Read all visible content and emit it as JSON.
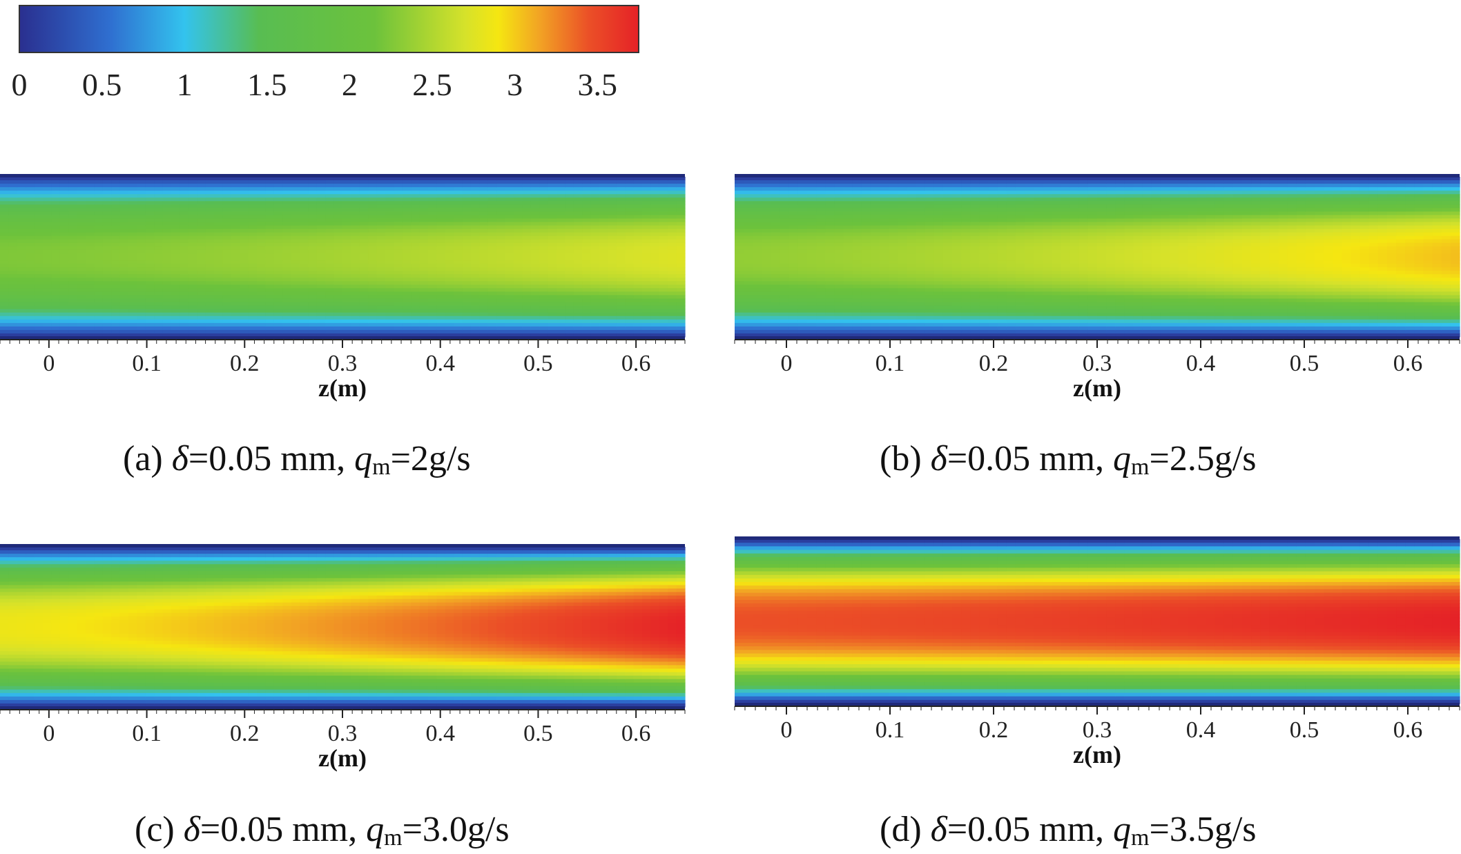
{
  "colorbar": {
    "min": 0,
    "max": 3.75,
    "ticks": [
      "0",
      "0.5",
      "1",
      "1.5",
      "2",
      "2.5",
      "3",
      "3.5"
    ],
    "tick_values": [
      0,
      0.5,
      1,
      1.5,
      2,
      2.5,
      3,
      3.5
    ],
    "stops": [
      {
        "v": 0.0,
        "color": "#2a2f8f"
      },
      {
        "v": 0.55,
        "color": "#2f6fd0"
      },
      {
        "v": 1.0,
        "color": "#33c3ee"
      },
      {
        "v": 1.45,
        "color": "#58bd52"
      },
      {
        "v": 2.15,
        "color": "#6cc23c"
      },
      {
        "v": 2.7,
        "color": "#d6e22a"
      },
      {
        "v": 2.9,
        "color": "#f5e611"
      },
      {
        "v": 3.15,
        "color": "#f2a324"
      },
      {
        "v": 3.45,
        "color": "#eb4f27"
      },
      {
        "v": 3.75,
        "color": "#e52227"
      }
    ]
  },
  "chart_data": [
    {
      "type": "heatmap",
      "panel": "a",
      "caption": {
        "prefix": "(a) ",
        "delta": "δ",
        "delta_value": "=0.05 mm, ",
        "q": "q",
        "q_sub": "m",
        "q_value": "=2g/s"
      },
      "xlabel": "z(m)",
      "xticks": [
        "0",
        "0.1",
        "0.2",
        "0.3",
        "0.4",
        "0.5",
        "0.6"
      ],
      "xtick_values": [
        0,
        0.1,
        0.2,
        0.3,
        0.4,
        0.5,
        0.6
      ],
      "xlim": [
        -0.05,
        0.65
      ],
      "core_start": 2.25,
      "core_end": 2.75
    },
    {
      "type": "heatmap",
      "panel": "b",
      "caption": {
        "prefix": "(b) ",
        "delta": "δ",
        "delta_value": "=0.05 mm, ",
        "q": "q",
        "q_sub": "m",
        "q_value": "=2.5g/s"
      },
      "xlabel": "z(m)",
      "xticks": [
        "0",
        "0.1",
        "0.2",
        "0.3",
        "0.4",
        "0.5",
        "0.6"
      ],
      "xtick_values": [
        0,
        0.1,
        0.2,
        0.3,
        0.4,
        0.5,
        0.6
      ],
      "xlim": [
        -0.05,
        0.65
      ],
      "core_start": 2.35,
      "core_end": 3.05
    },
    {
      "type": "heatmap",
      "panel": "c",
      "caption": {
        "prefix": "(c) ",
        "delta": "δ",
        "delta_value": "=0.05 mm, ",
        "q": "q",
        "q_sub": "m",
        "q_value": "=3.0g/s"
      },
      "xlabel": "z(m)",
      "xticks": [
        "0",
        "0.1",
        "0.2",
        "0.3",
        "0.4",
        "0.5",
        "0.6"
      ],
      "xtick_values": [
        0,
        0.1,
        0.2,
        0.3,
        0.4,
        0.5,
        0.6
      ],
      "xlim": [
        -0.05,
        0.65
      ],
      "core_start": 2.85,
      "core_end": 3.75
    },
    {
      "type": "heatmap",
      "panel": "d",
      "caption": {
        "prefix": "(d) ",
        "delta": "δ",
        "delta_value": "=0.05 mm, ",
        "q": "q",
        "q_sub": "m",
        "q_value": "=3.5g/s"
      },
      "xlabel": "z(m)",
      "xticks": [
        "0",
        "0.1",
        "0.2",
        "0.3",
        "0.4",
        "0.5",
        "0.6"
      ],
      "xtick_values": [
        0,
        0.1,
        0.2,
        0.3,
        0.4,
        0.5,
        0.6
      ],
      "xlim": [
        -0.05,
        0.65
      ],
      "core_start": 3.45,
      "core_end": 3.75
    }
  ]
}
